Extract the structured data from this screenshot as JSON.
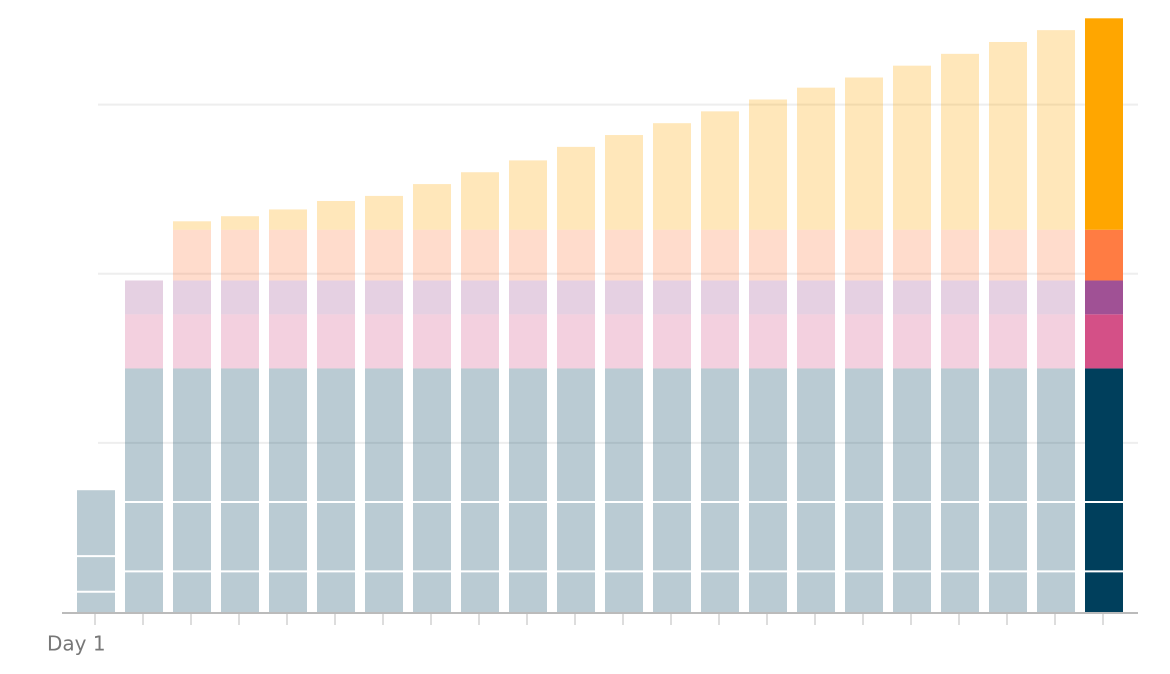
{
  "chart_data": {
    "type": "stacked_bar",
    "categories": [
      "Day 1",
      null,
      null,
      null,
      null,
      null,
      null,
      null,
      null,
      null,
      null,
      null,
      null,
      null,
      null,
      null,
      null,
      null,
      null,
      null,
      null,
      null
    ],
    "ylim": [
      0,
      3.5
    ],
    "yticks": [
      1,
      2,
      3
    ],
    "grid": true,
    "highlight": 21,
    "series": [
      {
        "color": "#003f5c",
        "values": [
          0.12,
          0.24,
          0.24,
          0.24,
          0.24,
          0.24,
          0.24,
          0.24,
          0.24,
          0.24,
          0.24,
          0.24,
          0.24,
          0.24,
          0.24,
          0.24,
          0.24,
          0.24,
          0.24,
          0.24,
          0.24,
          0.24
        ]
      },
      {
        "color": "#003f5c",
        "values": [
          0.21,
          0.41,
          0.41,
          0.41,
          0.41,
          0.41,
          0.41,
          0.41,
          0.41,
          0.41,
          0.41,
          0.41,
          0.41,
          0.41,
          0.41,
          0.41,
          0.41,
          0.41,
          0.41,
          0.41,
          0.41,
          0.41
        ]
      },
      {
        "color": "#003f5c",
        "values": [
          0.39,
          0.79,
          0.79,
          0.79,
          0.79,
          0.79,
          0.79,
          0.79,
          0.79,
          0.79,
          0.79,
          0.79,
          0.79,
          0.79,
          0.79,
          0.79,
          0.79,
          0.79,
          0.79,
          0.79,
          0.79,
          0.79
        ]
      },
      {
        "color": "#d45087",
        "values": [
          0,
          0.32,
          0.32,
          0.32,
          0.32,
          0.32,
          0.32,
          0.32,
          0.32,
          0.32,
          0.32,
          0.32,
          0.32,
          0.32,
          0.32,
          0.32,
          0.32,
          0.32,
          0.32,
          0.32,
          0.32,
          0.32
        ]
      },
      {
        "color": "#a05195",
        "values": [
          0,
          0.2,
          0.2,
          0.2,
          0.2,
          0.2,
          0.2,
          0.2,
          0.2,
          0.2,
          0.2,
          0.2,
          0.2,
          0.2,
          0.2,
          0.2,
          0.2,
          0.2,
          0.2,
          0.2,
          0.2,
          0.2
        ]
      },
      {
        "color": "#ff7c43",
        "values": [
          0,
          0,
          0.3,
          0.3,
          0.3,
          0.3,
          0.3,
          0.3,
          0.3,
          0.3,
          0.3,
          0.3,
          0.3,
          0.3,
          0.3,
          0.3,
          0.3,
          0.3,
          0.3,
          0.3,
          0.3,
          0.3
        ]
      },
      {
        "color": "#ffa600",
        "values": [
          0,
          0,
          0.05,
          0.08,
          0.12,
          0.17,
          0.2,
          0.27,
          0.34,
          0.41,
          0.49,
          0.56,
          0.63,
          0.7,
          0.77,
          0.84,
          0.9,
          0.97,
          1.04,
          1.11,
          1.18,
          1.25
        ]
      }
    ]
  }
}
